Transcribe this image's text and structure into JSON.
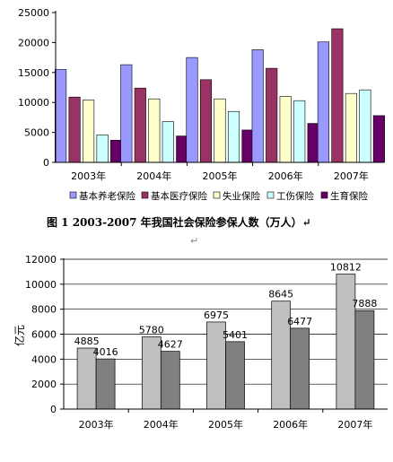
{
  "chart_data": [
    {
      "type": "bar",
      "categories": [
        "2003年",
        "2004年",
        "2005年",
        "2006年",
        "2007年"
      ],
      "series": [
        {
          "name": "基本养老保险",
          "color": "#9999FF",
          "values": [
            15500,
            16300,
            17500,
            18800,
            20100
          ]
        },
        {
          "name": "基本医疗保险",
          "color": "#993366",
          "values": [
            10900,
            12400,
            13800,
            15700,
            22300
          ]
        },
        {
          "name": "失业保险",
          "color": "#FFFFCC",
          "values": [
            10400,
            10600,
            10600,
            11000,
            11500
          ]
        },
        {
          "name": "工伤保险",
          "color": "#CCFFFF",
          "values": [
            4600,
            6800,
            8500,
            10300,
            12100
          ]
        },
        {
          "name": "生育保险",
          "color": "#660066",
          "values": [
            3700,
            4400,
            5400,
            6500,
            7800
          ]
        }
      ],
      "yticks": [
        "25000",
        "20000",
        "15000",
        "10000",
        "5000",
        "0"
      ],
      "ylim": [
        0,
        25000
      ],
      "legend_position": "bottom",
      "grid": false,
      "caption": "图 1   2003-2007 年我国社会保险参保人数（万人）↵",
      "caption_mark": "↵"
    },
    {
      "type": "bar",
      "categories": [
        "2003年",
        "2004年",
        "2005年",
        "2006年",
        "2007年"
      ],
      "ylabel": "亿元",
      "series": [
        {
          "color": "#C0C0C0",
          "values": [
            4885,
            5780,
            6975,
            8645,
            10812
          ]
        },
        {
          "color": "#808080",
          "values": [
            4016,
            4627,
            5401,
            6477,
            7888
          ]
        }
      ],
      "data_labels": [
        [
          "4885",
          "5780",
          "6975",
          "8645",
          "10812"
        ],
        [
          "4016",
          "4627",
          "5401",
          "6477",
          "7888"
        ]
      ],
      "yticks": [
        "12000",
        "10000",
        "8000",
        "6000",
        "4000",
        "2000",
        "0"
      ],
      "ylim": [
        0,
        12000
      ],
      "grid": true
    }
  ]
}
